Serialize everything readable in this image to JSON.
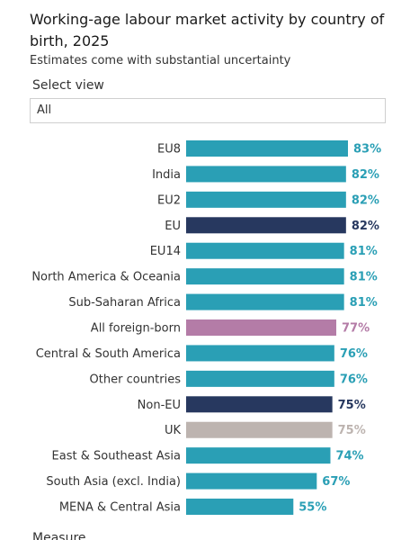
{
  "header": {
    "title": "Working-age labour market activity by country of birth, 2025",
    "subtitle": "Estimates come with substantial uncertainty"
  },
  "controls": {
    "select_label": "Select view",
    "select_value": "All",
    "next_label": "Measure"
  },
  "chart_data": {
    "type": "bar",
    "orientation": "horizontal",
    "categories": [
      "EU8",
      "India",
      "EU2",
      "EU",
      "EU14",
      "North America & Oceania",
      "Sub-Saharan Africa",
      "All foreign-born",
      "Central & South America",
      "Other countries",
      "Non-EU",
      "UK",
      "East & Southeast Asia",
      "South Asia (excl. India)",
      "MENA & Central Asia"
    ],
    "values": [
      83,
      82,
      82,
      82,
      81,
      81,
      81,
      77,
      76,
      76,
      75,
      75,
      74,
      67,
      55
    ],
    "value_labels": [
      "83%",
      "82%",
      "82%",
      "82%",
      "81%",
      "81%",
      "81%",
      "77%",
      "76%",
      "76%",
      "75%",
      "75%",
      "74%",
      "67%",
      "55%"
    ],
    "colors": [
      "#2a9fb5",
      "#2a9fb5",
      "#2a9fb5",
      "#27385f",
      "#2a9fb5",
      "#2a9fb5",
      "#2a9fb5",
      "#b47ca7",
      "#2a9fb5",
      "#2a9fb5",
      "#27385f",
      "#bdb4b0",
      "#2a9fb5",
      "#2a9fb5",
      "#2a9fb5"
    ]
  }
}
